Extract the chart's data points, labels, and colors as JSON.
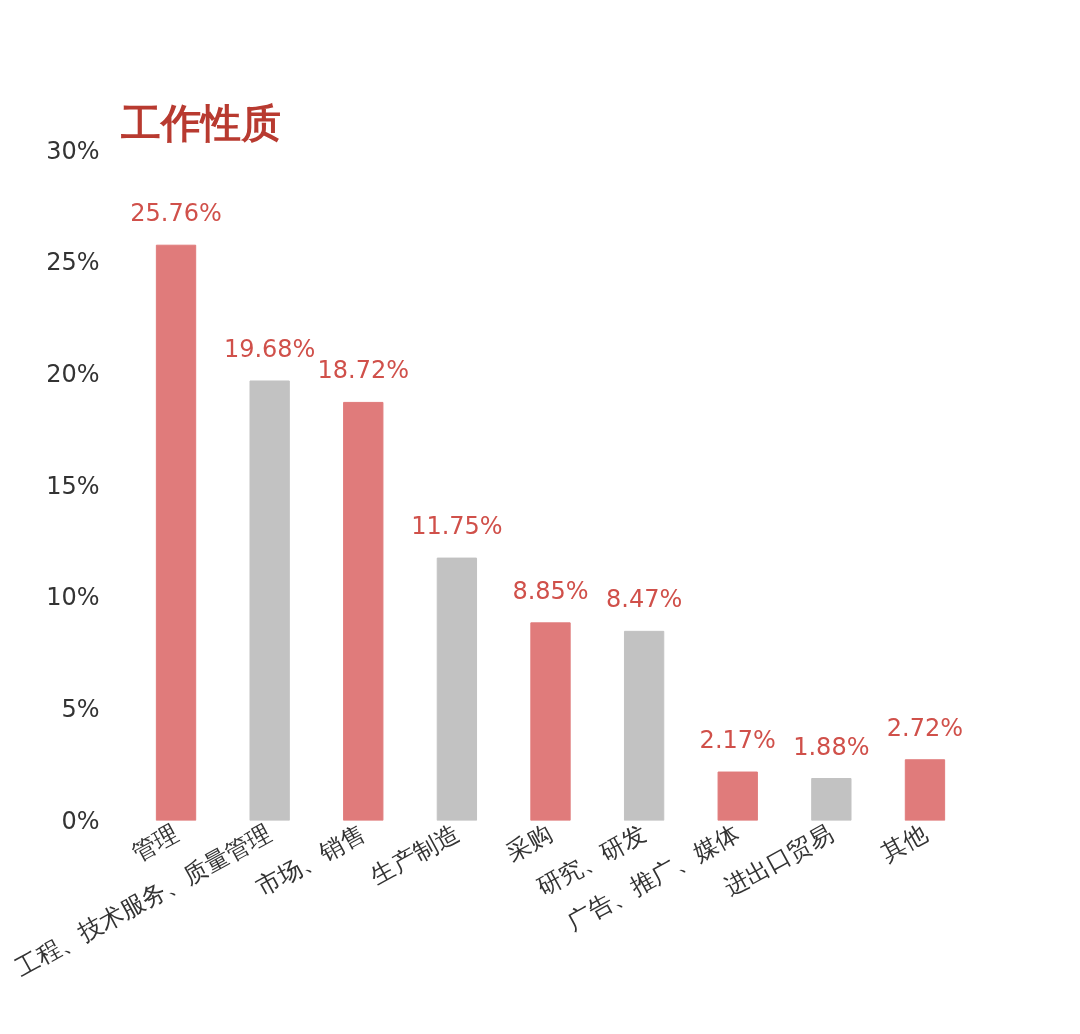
{
  "chart_data": {
    "type": "bar",
    "title": "工作性质",
    "categories": [
      "管理",
      "工程、技术服务、质量管理",
      "市场、销售",
      "生产制造",
      "采购",
      "研究、研发",
      "广告、推广、媒体",
      "进出口贸易",
      "其他"
    ],
    "values": [
      25.76,
      19.68,
      18.72,
      11.75,
      8.85,
      8.47,
      2.17,
      1.88,
      2.72
    ],
    "value_labels": [
      "25.76%",
      "19.68%",
      "18.72%",
      "11.75%",
      "8.85%",
      "8.47%",
      "2.17%",
      "1.88%",
      "2.72%"
    ],
    "colors": [
      "#e07b7b",
      "#c2c2c2",
      "#e07b7b",
      "#c2c2c2",
      "#e07b7b",
      "#c2c2c2",
      "#e07b7b",
      "#c2c2c2",
      "#e07b7b"
    ],
    "ylim": [
      0,
      30
    ],
    "yticks": [
      {
        "value": 0,
        "label": "0%"
      },
      {
        "value": 5,
        "label": "5%"
      },
      {
        "value": 10,
        "label": "10%"
      },
      {
        "value": 15,
        "label": "15%"
      },
      {
        "value": 20,
        "label": "20%"
      },
      {
        "value": 25,
        "label": "25%"
      },
      {
        "value": 30,
        "label": "30%"
      }
    ],
    "grid": false
  }
}
